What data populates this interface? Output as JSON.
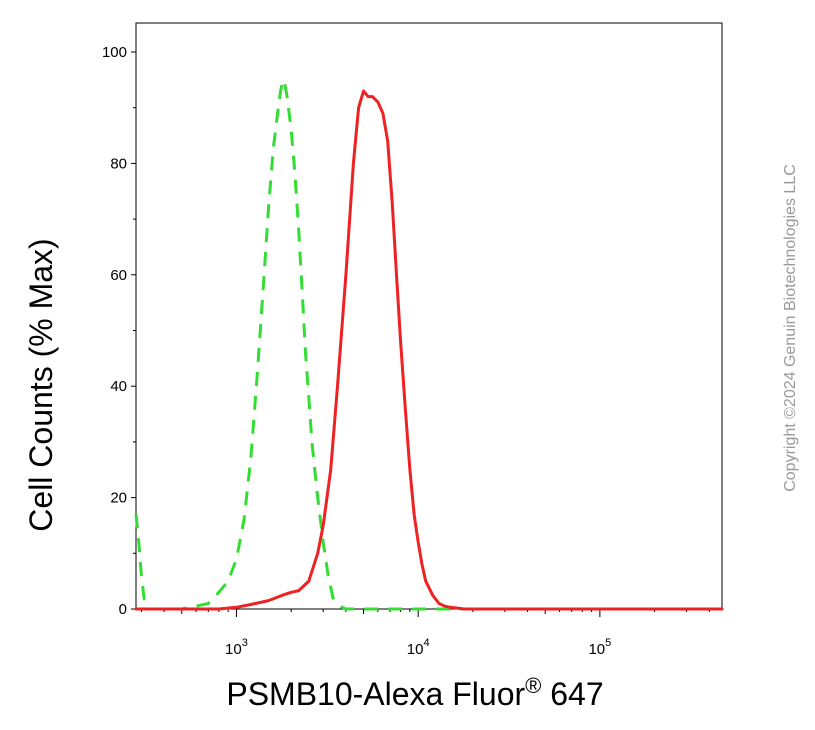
{
  "chart_data": {
    "type": "line",
    "xlabel": "PSMB10-Alexa Fluor",
    "xlabel_superscript": "®",
    "xlabel_suffix": " 647",
    "ylabel": "Cell Counts (% Max)",
    "xscale": "log",
    "xlim": [
      280,
      470000
    ],
    "ylim": [
      0,
      100
    ],
    "y_ticks": [
      "0",
      "20",
      "40",
      "60",
      "80",
      "100"
    ],
    "y_tick_values": [
      0,
      20,
      40,
      60,
      80,
      100
    ],
    "x_ticks": [
      {
        "base": "10",
        "exp": "3",
        "value": 1000
      },
      {
        "base": "10",
        "exp": "4",
        "value": 10000
      },
      {
        "base": "10",
        "exp": "5",
        "value": 100000
      }
    ],
    "grid": false,
    "legend": "none",
    "series": [
      {
        "color": "#33dd33",
        "style": "dashed",
        "x": [
          280,
          290,
          300,
          310,
          330,
          400,
          500,
          600,
          700,
          800,
          900,
          1000,
          1100,
          1200,
          1300,
          1400,
          1500,
          1600,
          1700,
          1750,
          1800,
          1850,
          1900,
          2000,
          2100,
          2200,
          2300,
          2400,
          2500,
          2600,
          2800,
          3000,
          3200,
          3400,
          3700,
          4000,
          5000,
          7000,
          10000,
          30000,
          100000,
          470000
        ],
        "y": [
          17,
          12,
          6,
          2,
          0,
          0,
          0,
          0.5,
          1,
          3,
          5,
          9,
          16,
          27,
          42,
          57,
          72,
          83,
          90,
          93,
          95,
          94,
          92,
          86,
          78,
          68,
          57,
          46,
          38,
          30,
          20,
          12,
          6,
          2,
          0.5,
          0,
          0,
          0,
          0,
          0,
          0,
          0
        ]
      },
      {
        "color": "#ee2222",
        "style": "solid",
        "x": [
          280,
          500,
          800,
          1000,
          1200,
          1500,
          1800,
          2000,
          2200,
          2500,
          2800,
          3000,
          3300,
          3600,
          4000,
          4400,
          4700,
          5000,
          5300,
          5600,
          6000,
          6400,
          6800,
          7200,
          7600,
          8000,
          8500,
          9000,
          9500,
          10000,
          10500,
          11000,
          12000,
          13000,
          14000,
          15000,
          18000,
          25000,
          100000,
          470000
        ],
        "y": [
          0,
          0,
          0,
          0.3,
          0.8,
          1.5,
          2.5,
          3,
          3.3,
          5,
          10,
          15,
          25,
          40,
          60,
          80,
          90,
          93,
          92,
          92,
          91,
          89,
          84,
          73,
          60,
          48,
          36,
          25,
          17,
          12,
          8,
          5,
          2.5,
          1,
          0.5,
          0.3,
          0,
          0,
          0,
          0
        ]
      }
    ]
  },
  "watermark": "Copyright ©2024 Genuin Biotechnologies LLC"
}
